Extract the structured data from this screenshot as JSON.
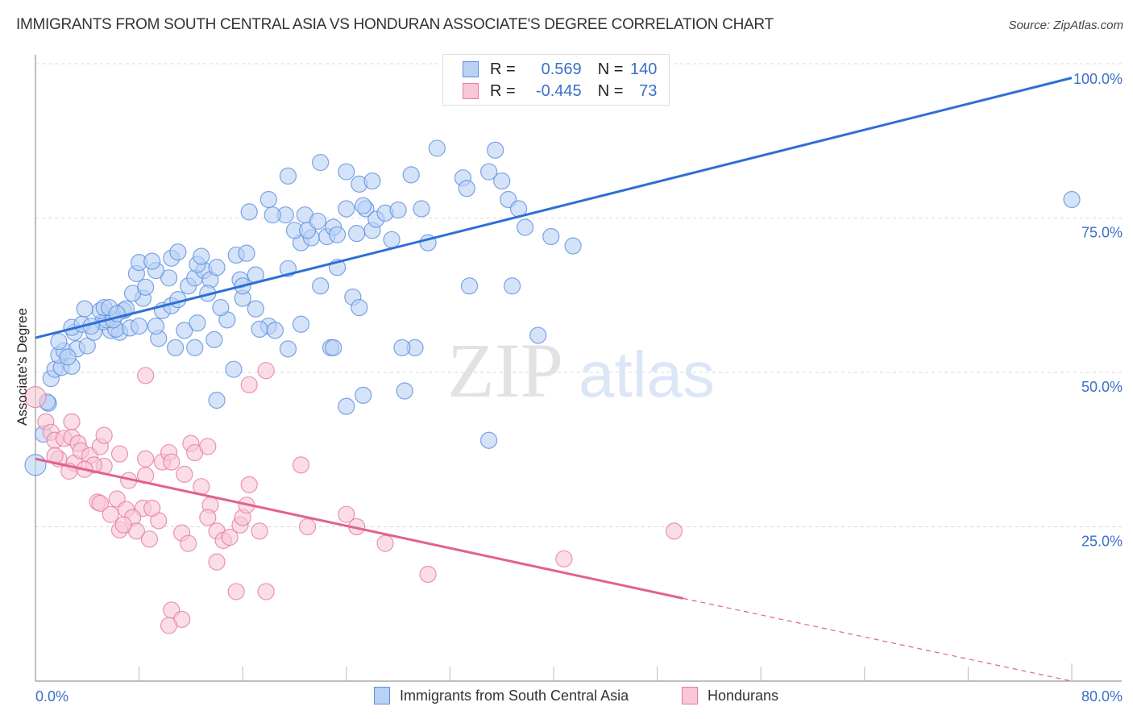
{
  "header": {
    "title": "IMMIGRANTS FROM SOUTH CENTRAL ASIA VS HONDURAN ASSOCIATE'S DEGREE CORRELATION CHART",
    "source": "Source: ZipAtlas.com"
  },
  "legend": {
    "rows": [
      {
        "r_label": "R =",
        "r_value": "0.569",
        "n_label": "N =",
        "n_value": "140"
      },
      {
        "r_label": "R =",
        "r_value": "-0.445",
        "n_label": "N =",
        "n_value": "73"
      }
    ]
  },
  "watermark": {
    "zip": "ZIP",
    "atlas": "atlas"
  },
  "chart_data": {
    "type": "scatter",
    "title": "IMMIGRANTS FROM SOUTH CENTRAL ASIA VS HONDURAN ASSOCIATE'S DEGREE CORRELATION CHART",
    "xlabel": "",
    "ylabel": "Associate's Degree",
    "xlim": [
      0,
      80
    ],
    "ylim": [
      0,
      100
    ],
    "x_tick_labels": [
      "0.0%",
      "80.0%"
    ],
    "y_ticks": [
      25,
      50,
      75,
      100
    ],
    "y_tick_labels": [
      "25.0%",
      "50.0%",
      "75.0%",
      "100.0%"
    ],
    "grid": true,
    "legend_position": "top-center",
    "series": [
      {
        "name": "Immigrants from South Central Asia",
        "color": "#5b8fe0",
        "fill": "#b9d1f5",
        "R": 0.569,
        "N": 140,
        "trendline": {
          "x": [
            0,
            80
          ],
          "y": [
            55.6,
            97.7
          ],
          "style": "solid"
        },
        "points": [
          [
            0.0,
            35.0
          ],
          [
            0.6,
            40.0
          ],
          [
            1.0,
            45.0
          ],
          [
            0.9,
            45.2
          ],
          [
            1.2,
            49.0
          ],
          [
            1.5,
            50.5
          ],
          [
            2.0,
            50.8
          ],
          [
            2.8,
            51.0
          ],
          [
            1.8,
            52.8
          ],
          [
            2.2,
            53.5
          ],
          [
            3.2,
            53.8
          ],
          [
            4.0,
            54.3
          ],
          [
            1.8,
            55.0
          ],
          [
            3.0,
            56.5
          ],
          [
            4.5,
            56.5
          ],
          [
            5.8,
            56.8
          ],
          [
            6.5,
            56.5
          ],
          [
            6.2,
            57.0
          ],
          [
            7.3,
            57.2
          ],
          [
            8.0,
            57.5
          ],
          [
            2.8,
            57.3
          ],
          [
            3.6,
            57.8
          ],
          [
            5.2,
            58.2
          ],
          [
            5.5,
            58.5
          ],
          [
            6.0,
            58.5
          ],
          [
            6.8,
            60.0
          ],
          [
            7.0,
            60.3
          ],
          [
            5.0,
            60.0
          ],
          [
            3.8,
            60.3
          ],
          [
            5.3,
            60.5
          ],
          [
            5.7,
            60.5
          ],
          [
            9.5,
            55.5
          ],
          [
            10.8,
            54.0
          ],
          [
            11.5,
            56.8
          ],
          [
            12.5,
            58.0
          ],
          [
            12.3,
            54.0
          ],
          [
            13.8,
            55.3
          ],
          [
            14.8,
            58.5
          ],
          [
            9.8,
            60.0
          ],
          [
            10.5,
            60.8
          ],
          [
            11.0,
            61.8
          ],
          [
            8.3,
            62.0
          ],
          [
            7.5,
            62.8
          ],
          [
            14.3,
            60.5
          ],
          [
            16.0,
            62.0
          ],
          [
            8.5,
            63.8
          ],
          [
            10.3,
            65.3
          ],
          [
            11.8,
            64.0
          ],
          [
            7.8,
            66.0
          ],
          [
            9.3,
            66.5
          ],
          [
            12.3,
            65.3
          ],
          [
            13.0,
            66.5
          ],
          [
            13.5,
            65.0
          ],
          [
            12.5,
            67.5
          ],
          [
            14.0,
            67.0
          ],
          [
            15.8,
            65.0
          ],
          [
            8.0,
            67.8
          ],
          [
            9.0,
            68.0
          ],
          [
            10.5,
            68.5
          ],
          [
            12.8,
            68.8
          ],
          [
            11.0,
            69.5
          ],
          [
            15.5,
            69.0
          ],
          [
            16.3,
            69.3
          ],
          [
            17.0,
            65.8
          ],
          [
            16.0,
            64.0
          ],
          [
            19.5,
            66.8
          ],
          [
            20.5,
            71.0
          ],
          [
            21.3,
            71.8
          ],
          [
            20.0,
            73.0
          ],
          [
            21.0,
            73.0
          ],
          [
            20.8,
            75.5
          ],
          [
            19.3,
            75.5
          ],
          [
            18.3,
            75.5
          ],
          [
            18.0,
            78.0
          ],
          [
            16.5,
            76.0
          ],
          [
            21.8,
            74.5
          ],
          [
            22.5,
            72.0
          ],
          [
            23.0,
            73.5
          ],
          [
            23.3,
            72.3
          ],
          [
            22.0,
            64.0
          ],
          [
            23.3,
            67.0
          ],
          [
            24.0,
            76.5
          ],
          [
            25.5,
            76.5
          ],
          [
            25.3,
            77.0
          ],
          [
            26.0,
            73.0
          ],
          [
            26.3,
            74.8
          ],
          [
            24.8,
            72.5
          ],
          [
            27.0,
            75.8
          ],
          [
            28.0,
            76.3
          ],
          [
            27.5,
            71.5
          ],
          [
            29.8,
            76.5
          ],
          [
            25.0,
            80.5
          ],
          [
            26.0,
            81.0
          ],
          [
            24.0,
            82.5
          ],
          [
            22.0,
            84.0
          ],
          [
            19.5,
            81.8
          ],
          [
            29.0,
            82.0
          ],
          [
            31.0,
            86.3
          ],
          [
            33.0,
            81.5
          ],
          [
            33.3,
            79.8
          ],
          [
            35.0,
            82.5
          ],
          [
            35.5,
            86.0
          ],
          [
            36.0,
            81.0
          ],
          [
            36.5,
            78.0
          ],
          [
            37.3,
            76.5
          ],
          [
            37.8,
            73.5
          ],
          [
            39.8,
            72.0
          ],
          [
            41.5,
            70.5
          ],
          [
            33.5,
            64.0
          ],
          [
            36.8,
            64.0
          ],
          [
            38.8,
            56.0
          ],
          [
            29.3,
            54.0
          ],
          [
            28.3,
            54.0
          ],
          [
            28.5,
            47.0
          ],
          [
            22.8,
            54.0
          ],
          [
            23.0,
            54.0
          ],
          [
            20.5,
            57.8
          ],
          [
            19.5,
            53.8
          ],
          [
            18.0,
            57.5
          ],
          [
            17.0,
            60.3
          ],
          [
            24.5,
            62.2
          ],
          [
            25.0,
            60.5
          ],
          [
            15.3,
            50.5
          ],
          [
            14.0,
            45.5
          ],
          [
            24.0,
            44.5
          ],
          [
            25.3,
            46.3
          ],
          [
            35.0,
            39.0
          ],
          [
            80.0,
            78.0
          ],
          [
            2.5,
            52.5
          ],
          [
            4.3,
            57.5
          ],
          [
            6.3,
            59.5
          ],
          [
            9.3,
            57.5
          ],
          [
            13.3,
            62.8
          ],
          [
            17.3,
            57.0
          ],
          [
            18.5,
            56.8
          ],
          [
            30.3,
            71.0
          ]
        ]
      },
      {
        "name": "Hondurans",
        "color": "#e57a9e",
        "fill": "#f8c6d6",
        "R": -0.445,
        "N": 73,
        "trendline": {
          "x": [
            0,
            50,
            80
          ],
          "y": [
            36.0,
            13.4,
            0.0
          ],
          "style": "solid-then-dashed"
        },
        "points": [
          [
            0.0,
            46.0
          ],
          [
            0.8,
            42.0
          ],
          [
            1.2,
            40.3
          ],
          [
            1.5,
            39.0
          ],
          [
            2.2,
            39.3
          ],
          [
            2.8,
            39.5
          ],
          [
            3.3,
            38.5
          ],
          [
            1.8,
            36.0
          ],
          [
            3.0,
            35.3
          ],
          [
            1.5,
            36.5
          ],
          [
            2.6,
            34.0
          ],
          [
            3.5,
            37.3
          ],
          [
            4.2,
            36.5
          ],
          [
            5.0,
            38.0
          ],
          [
            6.5,
            36.8
          ],
          [
            5.3,
            34.8
          ],
          [
            4.5,
            35.0
          ],
          [
            3.8,
            34.3
          ],
          [
            4.8,
            29.0
          ],
          [
            5.0,
            28.8
          ],
          [
            6.3,
            29.5
          ],
          [
            5.8,
            27.0
          ],
          [
            7.0,
            27.8
          ],
          [
            8.3,
            28.0
          ],
          [
            7.5,
            26.5
          ],
          [
            7.8,
            24.3
          ],
          [
            6.5,
            24.5
          ],
          [
            8.8,
            23.0
          ],
          [
            9.5,
            26.0
          ],
          [
            8.5,
            33.3
          ],
          [
            9.8,
            35.5
          ],
          [
            10.3,
            37.0
          ],
          [
            10.5,
            35.5
          ],
          [
            12.0,
            38.5
          ],
          [
            12.3,
            37.0
          ],
          [
            13.3,
            38.0
          ],
          [
            11.5,
            33.5
          ],
          [
            12.8,
            31.5
          ],
          [
            13.5,
            28.5
          ],
          [
            13.3,
            26.5
          ],
          [
            14.0,
            24.3
          ],
          [
            14.5,
            22.8
          ],
          [
            15.8,
            25.3
          ],
          [
            16.0,
            26.5
          ],
          [
            16.3,
            28.5
          ],
          [
            16.5,
            31.8
          ],
          [
            17.3,
            24.3
          ],
          [
            11.3,
            24.0
          ],
          [
            11.8,
            22.3
          ],
          [
            14.0,
            19.3
          ],
          [
            15.5,
            14.5
          ],
          [
            17.8,
            14.5
          ],
          [
            10.5,
            11.5
          ],
          [
            11.3,
            10.0
          ],
          [
            10.3,
            9.0
          ],
          [
            8.5,
            36.0
          ],
          [
            8.5,
            49.5
          ],
          [
            16.5,
            48.0
          ],
          [
            17.8,
            50.3
          ],
          [
            20.5,
            35.0
          ],
          [
            21.0,
            25.0
          ],
          [
            24.0,
            27.0
          ],
          [
            24.8,
            25.0
          ],
          [
            27.0,
            22.3
          ],
          [
            30.3,
            17.3
          ],
          [
            40.8,
            19.8
          ],
          [
            49.3,
            24.3
          ],
          [
            2.8,
            42.0
          ],
          [
            5.3,
            39.8
          ],
          [
            9.0,
            28.0
          ],
          [
            6.8,
            25.3
          ],
          [
            15.0,
            23.3
          ],
          [
            7.2,
            32.5
          ]
        ]
      }
    ]
  },
  "bottom_legend": {
    "items": [
      {
        "label": "Immigrants from South Central Asia"
      },
      {
        "label": "Hondurans"
      }
    ]
  }
}
